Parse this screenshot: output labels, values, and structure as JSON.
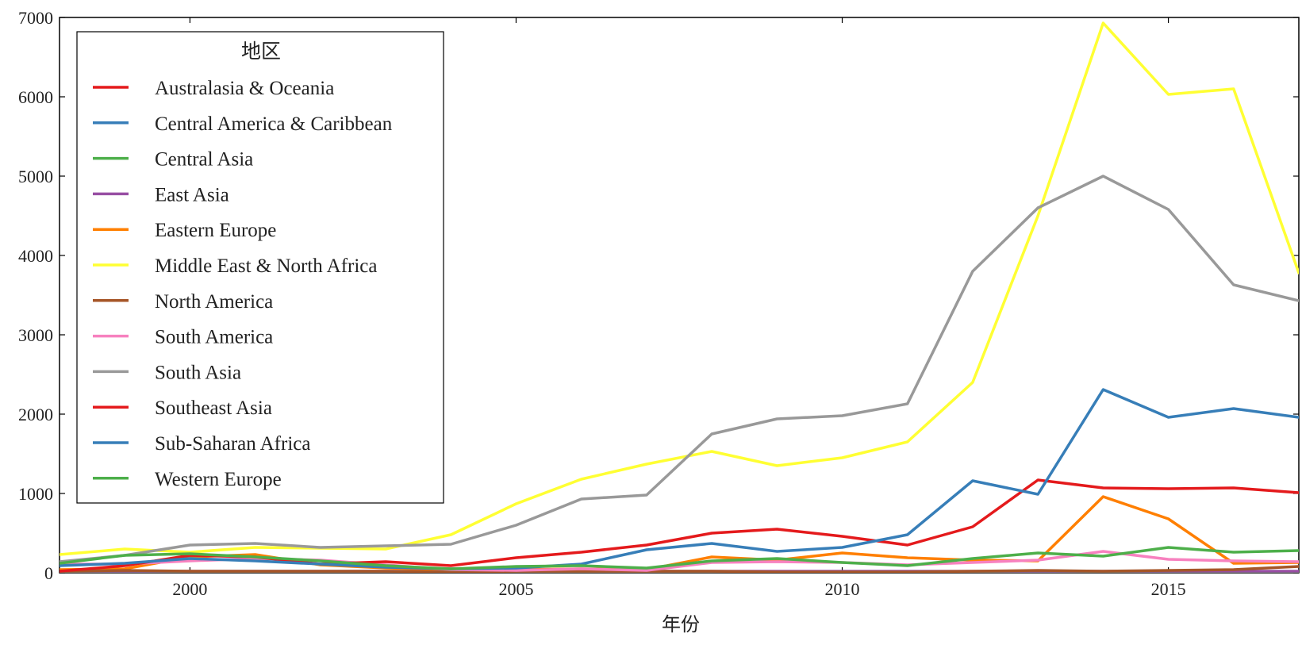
{
  "chart_data": {
    "type": "line",
    "title": "",
    "xlabel": "年份",
    "ylabel": "",
    "xlim": [
      1998,
      2017
    ],
    "ylim": [
      0,
      7000
    ],
    "x_ticks": [
      2000,
      2005,
      2010,
      2015
    ],
    "y_ticks": [
      0,
      1000,
      2000,
      3000,
      4000,
      5000,
      6000,
      7000
    ],
    "grid": false,
    "legend": {
      "title": "地区",
      "position": "top-left"
    },
    "x": [
      1998,
      1999,
      2000,
      2001,
      2002,
      2003,
      2004,
      2005,
      2006,
      2007,
      2008,
      2009,
      2010,
      2011,
      2012,
      2013,
      2014,
      2015,
      2016,
      2017
    ],
    "series": [
      {
        "name": "Australasia & Oceania",
        "color": "#e41a1c",
        "values": [
          5,
          5,
          5,
          5,
          5,
          5,
          5,
          5,
          5,
          5,
          5,
          5,
          5,
          5,
          5,
          5,
          5,
          5,
          5,
          5
        ]
      },
      {
        "name": "Central America & Caribbean",
        "color": "#377eb8",
        "values": [
          10,
          10,
          10,
          10,
          10,
          10,
          10,
          10,
          10,
          10,
          10,
          10,
          10,
          10,
          10,
          10,
          10,
          10,
          10,
          10
        ]
      },
      {
        "name": "Central Asia",
        "color": "#4daf4a",
        "values": [
          10,
          10,
          10,
          10,
          10,
          10,
          10,
          10,
          10,
          10,
          10,
          10,
          10,
          10,
          10,
          10,
          10,
          10,
          10,
          10
        ]
      },
      {
        "name": "East Asia",
        "color": "#984ea3",
        "values": [
          20,
          20,
          20,
          20,
          20,
          20,
          20,
          20,
          20,
          20,
          20,
          20,
          20,
          20,
          20,
          20,
          20,
          20,
          20,
          20
        ]
      },
      {
        "name": "Eastern Europe",
        "color": "#ff7f00",
        "values": [
          40,
          50,
          200,
          230,
          100,
          60,
          40,
          40,
          50,
          40,
          200,
          160,
          250,
          190,
          160,
          150,
          960,
          680,
          120,
          130
        ]
      },
      {
        "name": "Middle East & North Africa",
        "color": "#ffff33",
        "values": [
          230,
          300,
          260,
          320,
          310,
          300,
          480,
          870,
          1180,
          1370,
          1530,
          1350,
          1450,
          1650,
          2400,
          4500,
          6930,
          6030,
          6100,
          3780
        ]
      },
      {
        "name": "North America",
        "color": "#a65628",
        "values": [
          20,
          30,
          20,
          20,
          20,
          20,
          10,
          20,
          20,
          20,
          20,
          10,
          10,
          10,
          20,
          30,
          20,
          30,
          40,
          80
        ]
      },
      {
        "name": "South America",
        "color": "#f781bf",
        "values": [
          110,
          110,
          150,
          180,
          160,
          100,
          40,
          30,
          50,
          30,
          130,
          140,
          130,
          100,
          130,
          160,
          270,
          170,
          150,
          140
        ]
      },
      {
        "name": "South Asia",
        "color": "#999999",
        "values": [
          140,
          220,
          350,
          370,
          320,
          340,
          360,
          600,
          930,
          980,
          1750,
          1940,
          1980,
          2130,
          3800,
          4600,
          5000,
          4580,
          3630,
          3430
        ]
      },
      {
        "name": "Southeast Asia",
        "color": "#e41a1c",
        "values": [
          20,
          90,
          220,
          200,
          110,
          140,
          90,
          190,
          260,
          350,
          500,
          550,
          460,
          350,
          580,
          1170,
          1070,
          1060,
          1070,
          1010
        ]
      },
      {
        "name": "Sub-Saharan Africa",
        "color": "#377eb8",
        "values": [
          90,
          120,
          180,
          150,
          110,
          70,
          50,
          60,
          110,
          290,
          370,
          270,
          320,
          480,
          1160,
          990,
          2310,
          1960,
          2070,
          1960
        ]
      },
      {
        "name": "Western Europe",
        "color": "#4daf4a",
        "values": [
          120,
          220,
          240,
          200,
          150,
          90,
          50,
          80,
          90,
          60,
          150,
          180,
          130,
          90,
          180,
          250,
          210,
          320,
          260,
          280
        ]
      }
    ]
  }
}
